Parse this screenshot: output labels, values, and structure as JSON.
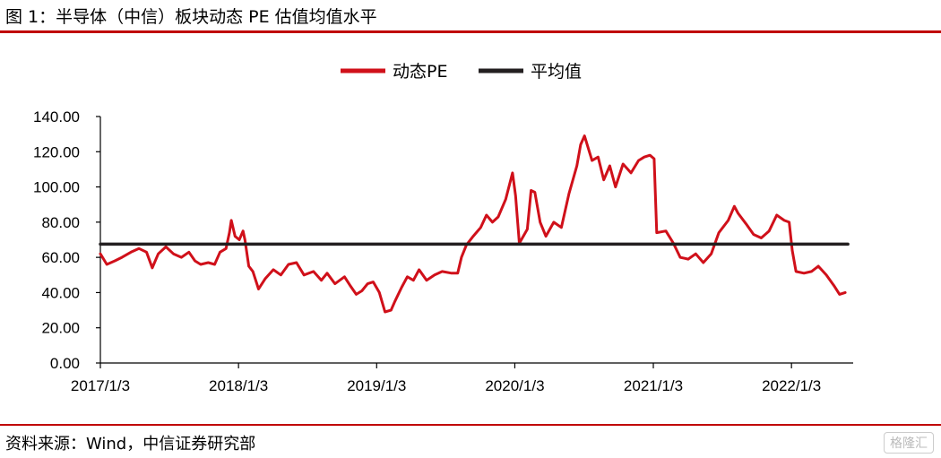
{
  "header": {
    "title": "图 1：半导体（中信）板块动态 PE 估值均值水平"
  },
  "footer": {
    "source": "资料来源：Wind，中信证券研究部",
    "watermark": "格隆汇"
  },
  "colors": {
    "accent": "#c00000",
    "pe_line": "#d0101a",
    "mean_line": "#231f20"
  },
  "chart_data": {
    "type": "line",
    "title": "",
    "xlabel": "",
    "ylabel": "",
    "ylim": [
      0,
      140
    ],
    "yticks": [
      "0.00",
      "20.00",
      "40.00",
      "60.00",
      "80.00",
      "100.00",
      "120.00",
      "140.00"
    ],
    "xlim": [
      "2017-01-03",
      "2022-06-15"
    ],
    "xticks": [
      {
        "date": "2017-01-03",
        "label": "2017/1/3"
      },
      {
        "date": "2018-01-03",
        "label": "2018/1/3"
      },
      {
        "date": "2019-01-03",
        "label": "2019/1/3"
      },
      {
        "date": "2020-01-03",
        "label": "2020/1/3"
      },
      {
        "date": "2021-01-03",
        "label": "2021/1/3"
      },
      {
        "date": "2022-01-03",
        "label": "2022/1/3"
      }
    ],
    "legend": "top-center",
    "grid": false,
    "series": [
      {
        "name": "动态PE",
        "color": "#d0101a",
        "points": [
          [
            "2017-01-03",
            62
          ],
          [
            "2017-01-20",
            56
          ],
          [
            "2017-02-10",
            58
          ],
          [
            "2017-03-01",
            60
          ],
          [
            "2017-03-25",
            63
          ],
          [
            "2017-04-15",
            65
          ],
          [
            "2017-05-05",
            63
          ],
          [
            "2017-05-20",
            54
          ],
          [
            "2017-06-05",
            62
          ],
          [
            "2017-06-25",
            66
          ],
          [
            "2017-07-15",
            62
          ],
          [
            "2017-08-05",
            60
          ],
          [
            "2017-08-25",
            63
          ],
          [
            "2017-09-10",
            58
          ],
          [
            "2017-09-25",
            56
          ],
          [
            "2017-10-15",
            57
          ],
          [
            "2017-11-01",
            56
          ],
          [
            "2017-11-15",
            63
          ],
          [
            "2017-12-01",
            65
          ],
          [
            "2017-12-10",
            74
          ],
          [
            "2017-12-15",
            81
          ],
          [
            "2017-12-25",
            72
          ],
          [
            "2018-01-05",
            70
          ],
          [
            "2018-01-15",
            75
          ],
          [
            "2018-01-20",
            70
          ],
          [
            "2018-01-30",
            55
          ],
          [
            "2018-02-10",
            52
          ],
          [
            "2018-02-25",
            42
          ],
          [
            "2018-03-15",
            48
          ],
          [
            "2018-04-05",
            53
          ],
          [
            "2018-04-25",
            50
          ],
          [
            "2018-05-15",
            56
          ],
          [
            "2018-06-05",
            57
          ],
          [
            "2018-06-25",
            50
          ],
          [
            "2018-07-20",
            52
          ],
          [
            "2018-08-10",
            47
          ],
          [
            "2018-08-25",
            51
          ],
          [
            "2018-09-15",
            45
          ],
          [
            "2018-10-10",
            49
          ],
          [
            "2018-10-25",
            44
          ],
          [
            "2018-11-10",
            39
          ],
          [
            "2018-11-25",
            41
          ],
          [
            "2018-12-10",
            45
          ],
          [
            "2018-12-25",
            46
          ],
          [
            "2019-01-10",
            40
          ],
          [
            "2019-01-25",
            29
          ],
          [
            "2019-02-10",
            30
          ],
          [
            "2019-02-20",
            35
          ],
          [
            "2019-03-10",
            43
          ],
          [
            "2019-03-25",
            49
          ],
          [
            "2019-04-10",
            47
          ],
          [
            "2019-04-25",
            53
          ],
          [
            "2019-05-15",
            47
          ],
          [
            "2019-06-05",
            50
          ],
          [
            "2019-06-25",
            52
          ],
          [
            "2019-07-20",
            51
          ],
          [
            "2019-08-05",
            51
          ],
          [
            "2019-08-15",
            60
          ],
          [
            "2019-08-28",
            67
          ],
          [
            "2019-09-15",
            72
          ],
          [
            "2019-10-05",
            77
          ],
          [
            "2019-10-20",
            84
          ],
          [
            "2019-11-05",
            80
          ],
          [
            "2019-11-20",
            83
          ],
          [
            "2019-12-10",
            93
          ],
          [
            "2019-12-28",
            108
          ],
          [
            "2020-01-05",
            95
          ],
          [
            "2020-01-15",
            68
          ],
          [
            "2020-02-05",
            76
          ],
          [
            "2020-02-15",
            98
          ],
          [
            "2020-02-25",
            97
          ],
          [
            "2020-03-10",
            80
          ],
          [
            "2020-03-25",
            72
          ],
          [
            "2020-04-15",
            80
          ],
          [
            "2020-05-05",
            77
          ],
          [
            "2020-05-25",
            96
          ],
          [
            "2020-06-15",
            112
          ],
          [
            "2020-06-25",
            124
          ],
          [
            "2020-07-05",
            129
          ],
          [
            "2020-07-25",
            115
          ],
          [
            "2020-08-10",
            117
          ],
          [
            "2020-08-25",
            104
          ],
          [
            "2020-09-10",
            112
          ],
          [
            "2020-09-25",
            100
          ],
          [
            "2020-10-15",
            113
          ],
          [
            "2020-11-05",
            108
          ],
          [
            "2020-11-25",
            115
          ],
          [
            "2020-12-10",
            117
          ],
          [
            "2020-12-25",
            118
          ],
          [
            "2021-01-05",
            116
          ],
          [
            "2021-01-12",
            74
          ],
          [
            "2021-02-05",
            75
          ],
          [
            "2021-02-25",
            68
          ],
          [
            "2021-03-15",
            60
          ],
          [
            "2021-04-05",
            59
          ],
          [
            "2021-04-25",
            62
          ],
          [
            "2021-05-15",
            57
          ],
          [
            "2021-06-05",
            62
          ],
          [
            "2021-06-25",
            74
          ],
          [
            "2021-07-20",
            81
          ],
          [
            "2021-08-05",
            89
          ],
          [
            "2021-08-15",
            85
          ],
          [
            "2021-09-05",
            79
          ],
          [
            "2021-09-25",
            73
          ],
          [
            "2021-10-15",
            71
          ],
          [
            "2021-11-05",
            75
          ],
          [
            "2021-11-25",
            84
          ],
          [
            "2021-12-15",
            81
          ],
          [
            "2021-12-28",
            80
          ],
          [
            "2022-01-05",
            64
          ],
          [
            "2022-01-15",
            52
          ],
          [
            "2022-02-05",
            51
          ],
          [
            "2022-02-25",
            52
          ],
          [
            "2022-03-15",
            55
          ],
          [
            "2022-04-05",
            50
          ],
          [
            "2022-04-25",
            44
          ],
          [
            "2022-05-10",
            39
          ],
          [
            "2022-05-25",
            40
          ]
        ]
      },
      {
        "name": "平均值",
        "color": "#231f20",
        "points": [
          [
            "2017-01-03",
            67.5
          ],
          [
            "2022-06-01",
            67.5
          ]
        ]
      }
    ]
  }
}
